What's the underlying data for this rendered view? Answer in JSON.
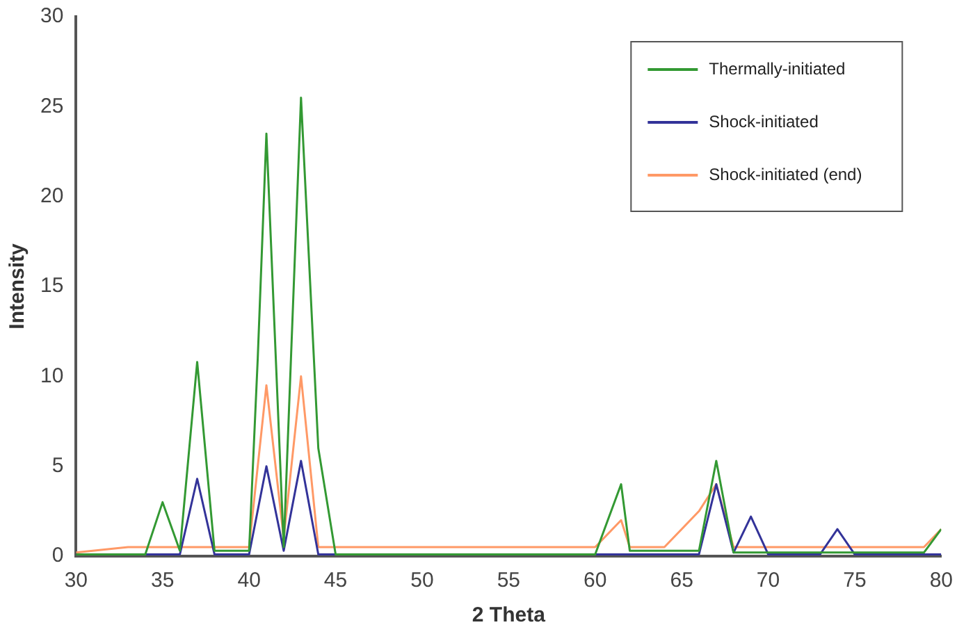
{
  "chart_data": {
    "type": "line",
    "xlabel": "2 Theta",
    "ylabel": "Intensity",
    "xlim": [
      30,
      80
    ],
    "xticks": [
      30,
      35,
      40,
      45,
      50,
      55,
      60,
      65,
      70,
      75,
      80
    ],
    "ylim": [
      0,
      30
    ],
    "yticks": [
      0,
      5,
      10,
      15,
      20,
      25,
      30
    ],
    "grid": false,
    "legend": "top right",
    "marker": "none",
    "series": [
      {
        "name": "Thermally-initiated",
        "color": "#339933",
        "x": [
          30,
          34,
          35,
          36,
          37,
          38,
          40,
          40.5,
          41,
          42,
          43,
          44,
          45,
          60,
          61.5,
          62,
          66,
          67,
          68,
          70,
          79,
          80
        ],
        "values": [
          0.1,
          0.1,
          3,
          0.3,
          10.8,
          0.3,
          0.3,
          11,
          23.5,
          0.5,
          25.5,
          6,
          0.1,
          0.1,
          4,
          0.3,
          0.3,
          5.3,
          0.2,
          0.2,
          0.2,
          1.5
        ]
      },
      {
        "name": "Shock-initiated",
        "color": "#333399",
        "x": [
          30,
          36,
          37,
          38,
          40,
          41,
          42,
          43,
          44,
          65,
          66,
          67,
          68,
          69,
          70,
          73,
          74,
          75,
          80
        ],
        "values": [
          0.1,
          0.1,
          4.3,
          0.1,
          0.1,
          5,
          0.3,
          5.3,
          0.1,
          0.1,
          0.1,
          4,
          0.2,
          2.2,
          0.1,
          0.1,
          1.5,
          0.1,
          0.1
        ]
      },
      {
        "name": "Shock-initiated (end)",
        "color": "#ff9966",
        "x": [
          30,
          33,
          40,
          41,
          42,
          43,
          44,
          57,
          60,
          61.5,
          62,
          64,
          66,
          67,
          68,
          78,
          79,
          80
        ],
        "values": [
          0.2,
          0.5,
          0.5,
          9.5,
          1,
          10,
          0.5,
          0.5,
          0.5,
          2,
          0.5,
          0.5,
          2.5,
          4,
          0.5,
          0.5,
          0.5,
          1.5
        ]
      }
    ]
  }
}
